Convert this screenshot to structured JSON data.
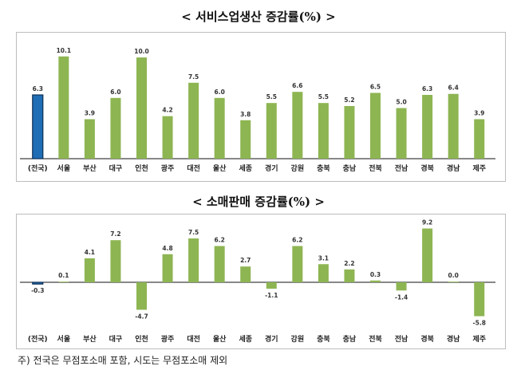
{
  "note": "주) 전국은 무점포소매 포함, 시도는 무점포소매 제외",
  "colors": {
    "national": "#1f6db5",
    "regional": "#8db552",
    "axis": "#111111"
  },
  "chart_data": [
    {
      "type": "bar",
      "title": "< 서비스업생산 증감률(%) >",
      "categories": [
        "(전국)",
        "서울",
        "부산",
        "대구",
        "인천",
        "광주",
        "대전",
        "울산",
        "세종",
        "경기",
        "강원",
        "충북",
        "충남",
        "전북",
        "전남",
        "경북",
        "경남",
        "제주"
      ],
      "values": [
        6.3,
        10.1,
        3.9,
        6.0,
        10.0,
        4.2,
        7.5,
        6.0,
        3.8,
        5.5,
        6.6,
        5.5,
        5.2,
        6.5,
        5.0,
        6.3,
        6.4,
        3.9
      ],
      "value_labels": [
        "6.3",
        "10.1",
        "3.9",
        "6.0",
        "10.0",
        "4.2",
        "7.5",
        "6.0",
        "3.8",
        "5.5",
        "6.6",
        "5.5",
        "5.2",
        "6.5",
        "5.0",
        "6.3",
        "6.4",
        "3.9"
      ],
      "ylim": [
        0,
        11.5
      ]
    },
    {
      "type": "bar",
      "title": "< 소매판매 증감률(%) >",
      "categories": [
        "(전국)",
        "서울",
        "부산",
        "대구",
        "인천",
        "광주",
        "대전",
        "울산",
        "세종",
        "경기",
        "강원",
        "충북",
        "충남",
        "전북",
        "전남",
        "경북",
        "경남",
        "제주"
      ],
      "values": [
        -0.3,
        0.1,
        4.1,
        7.2,
        -4.7,
        4.8,
        7.5,
        6.2,
        2.7,
        -1.1,
        6.2,
        3.1,
        2.2,
        0.3,
        -1.4,
        9.2,
        0.0,
        -5.8
      ],
      "value_labels": [
        "-0.3",
        "0.1",
        "4.1",
        "7.2",
        "-4.7",
        "4.8",
        "7.5",
        "6.2",
        "2.7",
        "-1.1",
        "6.2",
        "3.1",
        "2.2",
        "0.3",
        "-1.4",
        "9.2",
        "0.0",
        "-5.8"
      ],
      "ylim": [
        -7.5,
        10.5
      ]
    }
  ]
}
